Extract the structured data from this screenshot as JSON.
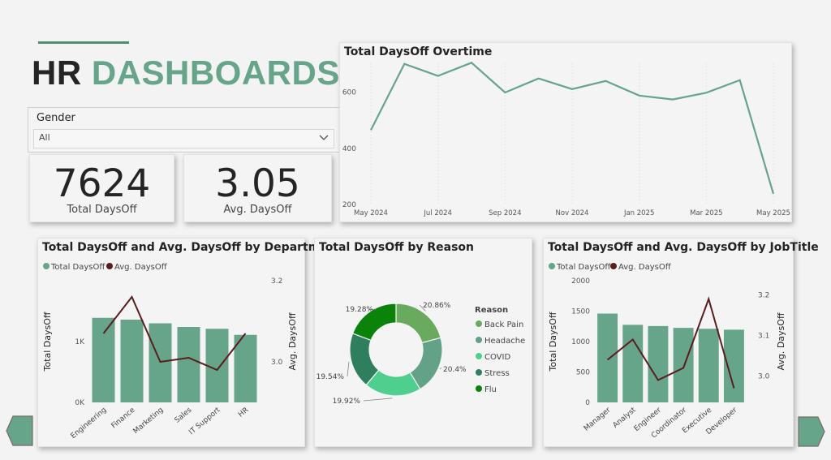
{
  "header": {
    "title_dark": "HR",
    "title_accent": "DASHBOARDS"
  },
  "slicer": {
    "label": "Gender",
    "value": "All"
  },
  "kpis": [
    {
      "value": "7624",
      "caption": "Total DaysOff"
    },
    {
      "value": "3.05",
      "caption": "Avg. DaysOff"
    }
  ],
  "colors": {
    "bar": "#66a58a",
    "line_dark": "#5a1d1d",
    "line_teal": "#66a58a"
  },
  "chart_data": [
    {
      "id": "overtime",
      "type": "line",
      "title": "Total DaysOff Overtime",
      "x": [
        "May 2024",
        "Jun 2024",
        "Jul 2024",
        "Aug 2024",
        "Sep 2024",
        "Oct 2024",
        "Nov 2024",
        "Dec 2024",
        "Jan 2025",
        "Feb 2025",
        "Mar 2025",
        "Apr 2025",
        "May 2025"
      ],
      "x_tick_labels": [
        "May 2024",
        "Jul 2024",
        "Sep 2024",
        "Nov 2024",
        "Jan 2025",
        "Mar 2025",
        "May 2025"
      ],
      "values": [
        462,
        698,
        655,
        702,
        596,
        646,
        608,
        637,
        585,
        571,
        595,
        640,
        235
      ],
      "y_ticks": [
        "200",
        "400",
        "600"
      ],
      "ylim": [
        200,
        700
      ],
      "grid": false
    },
    {
      "id": "department",
      "type": "bar",
      "title": "Total DaysOff and Avg. DaysOff by Department",
      "legend": [
        "Total DaysOff",
        "Avg. DaysOff"
      ],
      "legend_position": "top-left",
      "categories": [
        "Engineering",
        "Finance",
        "Marketing",
        "Sales",
        "IT Support",
        "HR"
      ],
      "bar_values": [
        1390,
        1360,
        1300,
        1240,
        1210,
        1110
      ],
      "line_values": [
        3.07,
        3.16,
        3.0,
        3.01,
        2.98,
        3.07
      ],
      "ylabel": "Total DaysOff",
      "y2label": "Avg. DaysOff",
      "y_ticks": [
        "0K",
        "1K"
      ],
      "y2_ticks": [
        "3.0",
        "3.2"
      ],
      "ylim": [
        0,
        2000
      ],
      "y2lim": [
        2.9,
        3.2
      ]
    },
    {
      "id": "reason",
      "type": "pie",
      "title": "Total DaysOff by Reason",
      "legend_title": "Reason",
      "labels": [
        "Back Pain",
        "Headache",
        "COVID",
        "Stress",
        "Flu"
      ],
      "values": [
        20.86,
        20.4,
        19.92,
        19.54,
        19.28
      ],
      "value_labels": [
        "20.86%",
        "20.4%",
        "19.92%",
        "19.54%",
        "19.28%"
      ],
      "colors": [
        "#6aaa5e",
        "#63a287",
        "#4ecf8e",
        "#2f7f5f",
        "#0b830b"
      ]
    },
    {
      "id": "jobtitle",
      "type": "bar",
      "title": "Total DaysOff and Avg. DaysOff by JobTitle",
      "legend": [
        "Total DaysOff",
        "Avg. DaysOff"
      ],
      "legend_position": "top-left",
      "categories": [
        "Manager",
        "Analyst",
        "Engineer",
        "Coordinator",
        "Executive",
        "Developer"
      ],
      "bar_values": [
        1460,
        1275,
        1255,
        1225,
        1210,
        1195
      ],
      "line_values": [
        3.04,
        3.09,
        2.99,
        3.02,
        3.19,
        2.97
      ],
      "ylabel": "Total DaysOff",
      "y2label": "Avg. DaysOff",
      "y_ticks": [
        "0",
        "500",
        "1000",
        "1500",
        "2000"
      ],
      "y2_ticks": [
        "3.0",
        "3.1",
        "3.2"
      ],
      "ylim": [
        0,
        2000
      ],
      "y2lim": [
        2.935,
        3.235
      ]
    }
  ]
}
